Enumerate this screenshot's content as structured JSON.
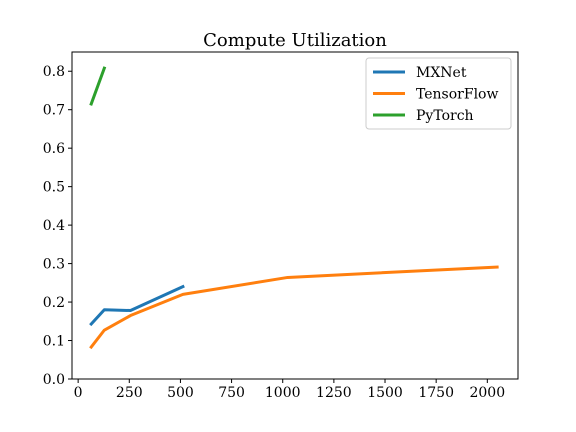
{
  "chart_data": {
    "type": "line",
    "title": "Compute Utilization",
    "xlabel": "",
    "ylabel": "",
    "xlim": [
      -30,
      2150
    ],
    "ylim": [
      0,
      0.85
    ],
    "xticks": [
      0,
      250,
      500,
      750,
      1000,
      1250,
      1500,
      1750,
      2000
    ],
    "yticks": [
      0.0,
      0.1,
      0.2,
      0.3,
      0.4,
      0.5,
      0.6,
      0.7,
      0.8
    ],
    "ytick_labels": [
      "0.0",
      "0.1",
      "0.2",
      "0.3",
      "0.4",
      "0.5",
      "0.6",
      "0.7",
      "0.8"
    ],
    "grid": false,
    "legend_position": "top-right",
    "series": [
      {
        "name": "MXNet",
        "color": "#1f77b4",
        "x": [
          64,
          128,
          256,
          512
        ],
        "y": [
          0.143,
          0.18,
          0.178,
          0.24
        ]
      },
      {
        "name": "TensorFlow",
        "color": "#ff7f0e",
        "x": [
          64,
          128,
          256,
          512,
          1024,
          2048
        ],
        "y": [
          0.083,
          0.127,
          0.165,
          0.22,
          0.264,
          0.291
        ]
      },
      {
        "name": "PyTorch",
        "color": "#2ca02c",
        "x": [
          64,
          128
        ],
        "y": [
          0.715,
          0.808
        ]
      }
    ]
  }
}
